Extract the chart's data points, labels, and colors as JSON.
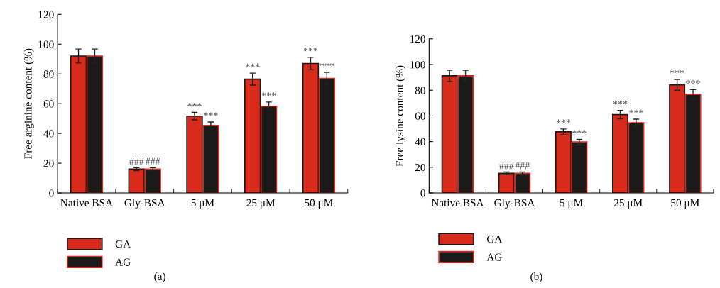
{
  "chart_data": [
    {
      "type": "bar",
      "ylabel": "Free arginine content (%)",
      "categories": [
        "Native BSA",
        "Gly-BSA",
        "5 μM",
        "25 μM",
        "50 μM"
      ],
      "series": [
        {
          "name": "GA",
          "color": "#d92b1c",
          "values": [
            92,
            16,
            51.6,
            76.5,
            87
          ],
          "errors": [
            4.7,
            1,
            2.5,
            4,
            4.2
          ],
          "value_labels": [
            null,
            "###",
            "***",
            "***",
            "***"
          ]
        },
        {
          "name": "AG",
          "color": "#1a1a1a",
          "values": [
            92,
            16,
            45.4,
            58.3,
            77
          ],
          "errors": [
            4.7,
            1,
            2.3,
            2.8,
            4
          ],
          "value_labels": [
            null,
            "###",
            "***",
            "***",
            "***"
          ]
        }
      ],
      "ylim": [
        0,
        120
      ],
      "yticks": [
        0,
        20,
        40,
        60,
        80,
        100,
        120
      ],
      "legend": "bottom left",
      "annotations": [
        "(a)"
      ]
    },
    {
      "type": "bar",
      "ylabel": "Free lysine content (%)",
      "categories": [
        "Native BSA",
        "Gly-BSA",
        "5 μM",
        "25 μM",
        "50 μM"
      ],
      "series": [
        {
          "name": "GA",
          "color": "#d92b1c",
          "values": [
            91.2,
            15.3,
            47.6,
            61,
            84.2
          ],
          "errors": [
            4.4,
            1,
            2.2,
            3.3,
            4.2
          ],
          "value_labels": [
            null,
            "###",
            "***",
            "***",
            "***"
          ]
        },
        {
          "name": "AG",
          "color": "#1a1a1a",
          "values": [
            91.2,
            15.3,
            39.7,
            54.6,
            76.7
          ],
          "errors": [
            4.4,
            1,
            2,
            2.9,
            3.8
          ],
          "value_labels": [
            null,
            "###",
            "***",
            "***",
            "***"
          ]
        }
      ],
      "ylim": [
        0,
        120
      ],
      "yticks": [
        0,
        20,
        40,
        60,
        80,
        100,
        120
      ],
      "legend": "bottom left",
      "annotations": [
        "(b)"
      ]
    }
  ]
}
